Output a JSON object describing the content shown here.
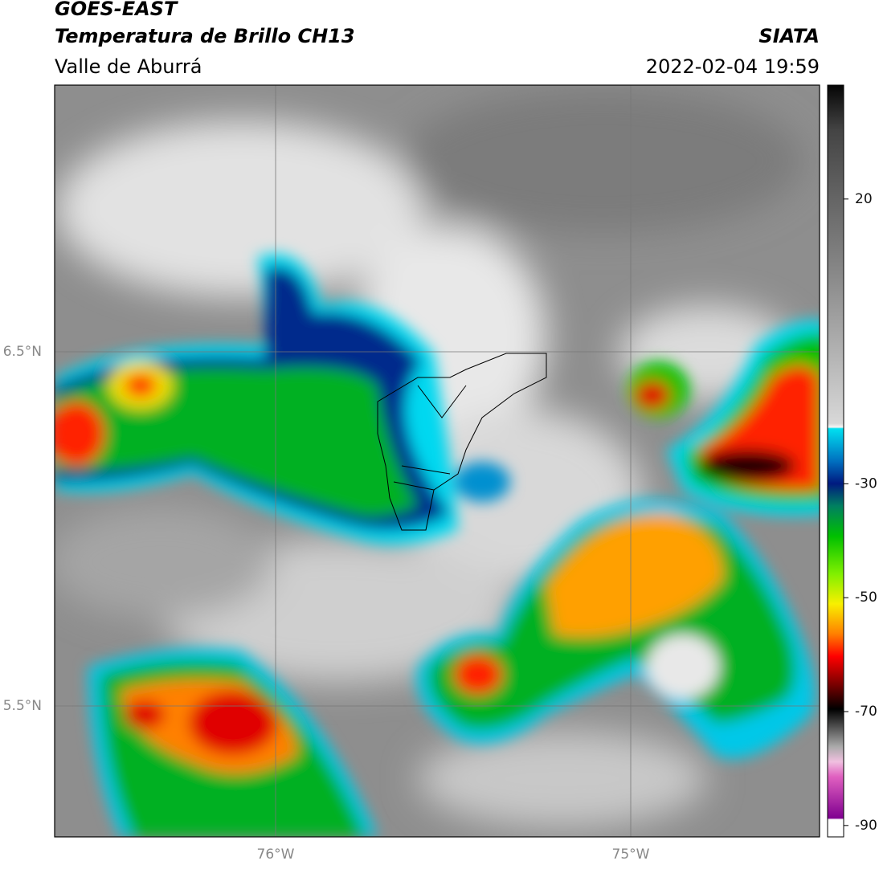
{
  "header": {
    "title": "GOES-EAST",
    "subtitle": "Temperatura de Brillo CH13",
    "region": "Valle de Aburrá",
    "source": "SIATA",
    "datetime": "2022-02-04 19:59"
  },
  "map": {
    "lat_labels": [
      "6.5°N",
      "5.5°N"
    ],
    "lon_labels": [
      "76°W",
      "75°W"
    ]
  },
  "colorbar": {
    "lim": [
      -92,
      40
    ],
    "ticks": [
      20,
      -30,
      -50,
      -70,
      -90
    ]
  }
}
